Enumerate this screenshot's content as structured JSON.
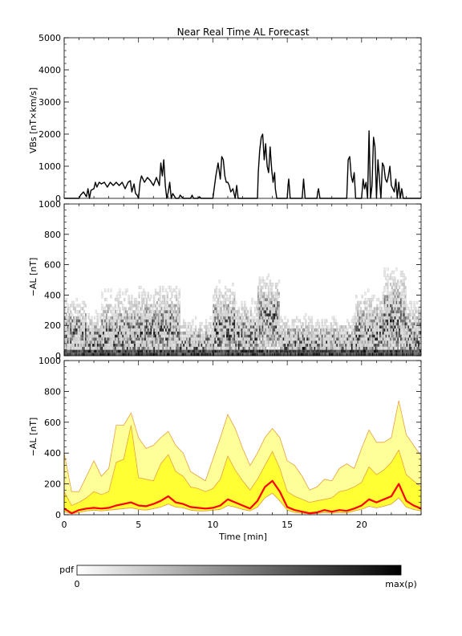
{
  "chart_data": [
    {
      "type": "line",
      "title": "Near Real Time AL Forecast",
      "ylabel": "VBs [nT×km/s]",
      "xlabel": "",
      "xlim": [
        0,
        24
      ],
      "ylim": [
        0,
        5000
      ],
      "yticks": [
        0,
        1000,
        2000,
        3000,
        4000,
        5000
      ],
      "series": [
        {
          "x": [
            0.0,
            1.0,
            1.1,
            1.3,
            1.5,
            1.6,
            1.7,
            1.8,
            2.0,
            2.1,
            2.2,
            2.35,
            2.5,
            2.7,
            2.9,
            3.1,
            3.3,
            3.5,
            3.7,
            3.9,
            4.1,
            4.3,
            4.45,
            4.55,
            4.7,
            4.8,
            4.9,
            5.0,
            5.1,
            5.2,
            5.4,
            5.6,
            5.8,
            6.0,
            6.2,
            6.4,
            6.5,
            6.6,
            6.7,
            6.8,
            6.9,
            7.0,
            7.1,
            7.2,
            7.3,
            7.5,
            7.7,
            7.8,
            8.0,
            8.5,
            8.6,
            8.7,
            9.0,
            9.1,
            9.2,
            9.5,
            10.0,
            10.2,
            10.35,
            10.5,
            10.6,
            10.7,
            10.8,
            10.9,
            11.0,
            11.1,
            11.2,
            11.35,
            11.5,
            11.6,
            11.7,
            11.8,
            12.0,
            12.5,
            13.0,
            13.05,
            13.15,
            13.25,
            13.35,
            13.45,
            13.55,
            13.65,
            13.75,
            13.85,
            13.95,
            14.05,
            14.15,
            14.2,
            14.3,
            14.5,
            15.0,
            15.05,
            15.1,
            15.2,
            16.0,
            16.05,
            16.1,
            16.2,
            17.0,
            17.05,
            17.1,
            17.2,
            19.0,
            19.1,
            19.2,
            19.3,
            19.4,
            19.5,
            19.6,
            19.7,
            20.0,
            20.1,
            20.2,
            20.3,
            20.4,
            20.5,
            20.6,
            20.7,
            20.8,
            20.9,
            21.0,
            21.1,
            21.2,
            21.3,
            21.4,
            21.5,
            21.6,
            21.7,
            21.8,
            21.9,
            22.0,
            22.1,
            22.2,
            22.3,
            22.4,
            22.5,
            22.6,
            22.7,
            22.8,
            24.0
          ],
          "y": [
            0,
            0,
            100,
            200,
            50,
            300,
            0,
            250,
            300,
            500,
            350,
            500,
            450,
            500,
            350,
            500,
            400,
            500,
            400,
            500,
            300,
            500,
            550,
            200,
            450,
            150,
            100,
            0,
            500,
            700,
            500,
            650,
            550,
            400,
            650,
            400,
            1100,
            700,
            1200,
            400,
            0,
            200,
            500,
            0,
            150,
            0,
            0,
            100,
            0,
            0,
            100,
            0,
            0,
            50,
            0,
            0,
            0,
            700,
            1100,
            600,
            1300,
            1200,
            700,
            500,
            500,
            400,
            200,
            300,
            0,
            400,
            0,
            0,
            0,
            0,
            0,
            800,
            1500,
            1900,
            2000,
            1200,
            1700,
            1000,
            800,
            1600,
            900,
            500,
            800,
            300,
            0,
            0,
            0,
            400,
            600,
            0,
            0,
            300,
            600,
            0,
            0,
            200,
            300,
            0,
            0,
            1200,
            1300,
            700,
            500,
            800,
            0,
            0,
            0,
            600,
            300,
            500,
            0,
            2100,
            0,
            400,
            1900,
            1600,
            0,
            1200,
            600,
            0,
            1100,
            1000,
            600,
            500,
            700,
            1000,
            400,
            300,
            200,
            600,
            0,
            500,
            0,
            300,
            0,
            0
          ]
        }
      ]
    },
    {
      "type": "heatmap",
      "ylabel": "−AL [nT]",
      "xlim": [
        0,
        24
      ],
      "ylim": [
        0,
        1000
      ],
      "yticks": [
        0,
        200,
        400,
        600,
        800,
        1000
      ],
      "colorbar": {
        "label": "pdf",
        "min_label": "0",
        "max_label": "max(p)",
        "colors": [
          "#ffffff",
          "#000000"
        ]
      },
      "regions": [
        {
          "x": [
            0.0,
            1.5
          ],
          "peak": 120,
          "spread": 150,
          "max": 420
        },
        {
          "x": [
            1.5,
            2.5
          ],
          "peak": 80,
          "spread": 120,
          "max": 300
        },
        {
          "x": [
            2.5,
            5.0
          ],
          "peak": 90,
          "spread": 200,
          "max": 600
        },
        {
          "x": [
            5.0,
            6.2
          ],
          "peak": 120,
          "spread": 200,
          "max": 580
        },
        {
          "x": [
            6.2,
            7.8
          ],
          "peak": 160,
          "spread": 180,
          "max": 560
        },
        {
          "x": [
            7.8,
            10.0
          ],
          "peak": 40,
          "spread": 120,
          "max": 360
        },
        {
          "x": [
            10.0,
            11.5
          ],
          "peak": 150,
          "spread": 200,
          "max": 700
        },
        {
          "x": [
            11.5,
            13.0
          ],
          "peak": 100,
          "spread": 160,
          "max": 520
        },
        {
          "x": [
            13.0,
            14.5
          ],
          "peak": 220,
          "spread": 180,
          "max": 620
        },
        {
          "x": [
            14.5,
            16.5
          ],
          "peak": 60,
          "spread": 120,
          "max": 380
        },
        {
          "x": [
            16.5,
            19.5
          ],
          "peak": 50,
          "spread": 120,
          "max": 320
        },
        {
          "x": [
            19.5,
            21.5
          ],
          "peak": 120,
          "spread": 180,
          "max": 500
        },
        {
          "x": [
            21.5,
            23.0
          ],
          "peak": 200,
          "spread": 220,
          "max": 760
        },
        {
          "x": [
            23.0,
            24.0
          ],
          "peak": 90,
          "spread": 160,
          "max": 400
        }
      ]
    },
    {
      "type": "area",
      "ylabel": "−AL [nT]",
      "xlabel": "Time [min]",
      "xlim": [
        0,
        24
      ],
      "ylim": [
        0,
        1000
      ],
      "xticks": [
        0,
        5,
        10,
        15,
        20
      ],
      "yticks": [
        0,
        200,
        400,
        600,
        800,
        1000
      ],
      "colors": {
        "outer_band": "#ffff99",
        "inner_band": "#ffff33",
        "band_edge": "#e8a040",
        "median": "#ff0000"
      },
      "x": [
        0,
        0.5,
        1,
        1.5,
        2,
        2.5,
        3,
        3.5,
        4,
        4.5,
        5,
        5.5,
        6,
        6.5,
        7,
        7.5,
        8,
        8.5,
        9,
        9.5,
        10,
        10.5,
        11,
        11.5,
        12,
        12.5,
        13,
        13.5,
        14,
        14.5,
        15,
        15.5,
        16,
        16.5,
        17,
        17.5,
        18,
        18.5,
        19,
        19.5,
        20,
        20.5,
        21,
        21.5,
        22,
        22.5,
        23,
        23.5,
        24
      ],
      "series": [
        {
          "role": "outer-upper",
          "values": [
            400,
            150,
            150,
            250,
            350,
            250,
            300,
            580,
            580,
            660,
            500,
            430,
            450,
            500,
            540,
            450,
            400,
            280,
            250,
            220,
            360,
            500,
            650,
            560,
            430,
            320,
            400,
            500,
            560,
            500,
            350,
            320,
            250,
            160,
            180,
            230,
            220,
            300,
            330,
            300,
            430,
            550,
            470,
            470,
            500,
            740,
            520,
            450,
            380
          ]
        },
        {
          "role": "inner-upper",
          "values": [
            150,
            60,
            80,
            110,
            150,
            130,
            150,
            340,
            360,
            580,
            240,
            230,
            220,
            330,
            390,
            280,
            250,
            180,
            170,
            150,
            170,
            230,
            380,
            290,
            220,
            160,
            230,
            320,
            410,
            300,
            150,
            120,
            100,
            80,
            90,
            100,
            110,
            150,
            160,
            180,
            210,
            310,
            260,
            290,
            340,
            420,
            260,
            220,
            180
          ]
        },
        {
          "role": "median",
          "values": [
            40,
            10,
            30,
            40,
            45,
            40,
            45,
            60,
            70,
            80,
            60,
            55,
            70,
            90,
            120,
            80,
            70,
            50,
            45,
            40,
            45,
            60,
            100,
            80,
            60,
            40,
            90,
            180,
            220,
            150,
            50,
            30,
            20,
            10,
            15,
            30,
            20,
            30,
            25,
            40,
            60,
            100,
            80,
            100,
            120,
            200,
            90,
            60,
            40
          ]
        },
        {
          "role": "inner-lower",
          "values": [
            20,
            5,
            15,
            25,
            30,
            25,
            30,
            35,
            40,
            45,
            35,
            30,
            40,
            50,
            70,
            50,
            45,
            30,
            25,
            25,
            30,
            35,
            60,
            50,
            35,
            25,
            50,
            110,
            140,
            90,
            30,
            15,
            10,
            5,
            8,
            15,
            10,
            15,
            12,
            25,
            35,
            55,
            45,
            55,
            70,
            110,
            50,
            35,
            25
          ]
        }
      ]
    }
  ]
}
